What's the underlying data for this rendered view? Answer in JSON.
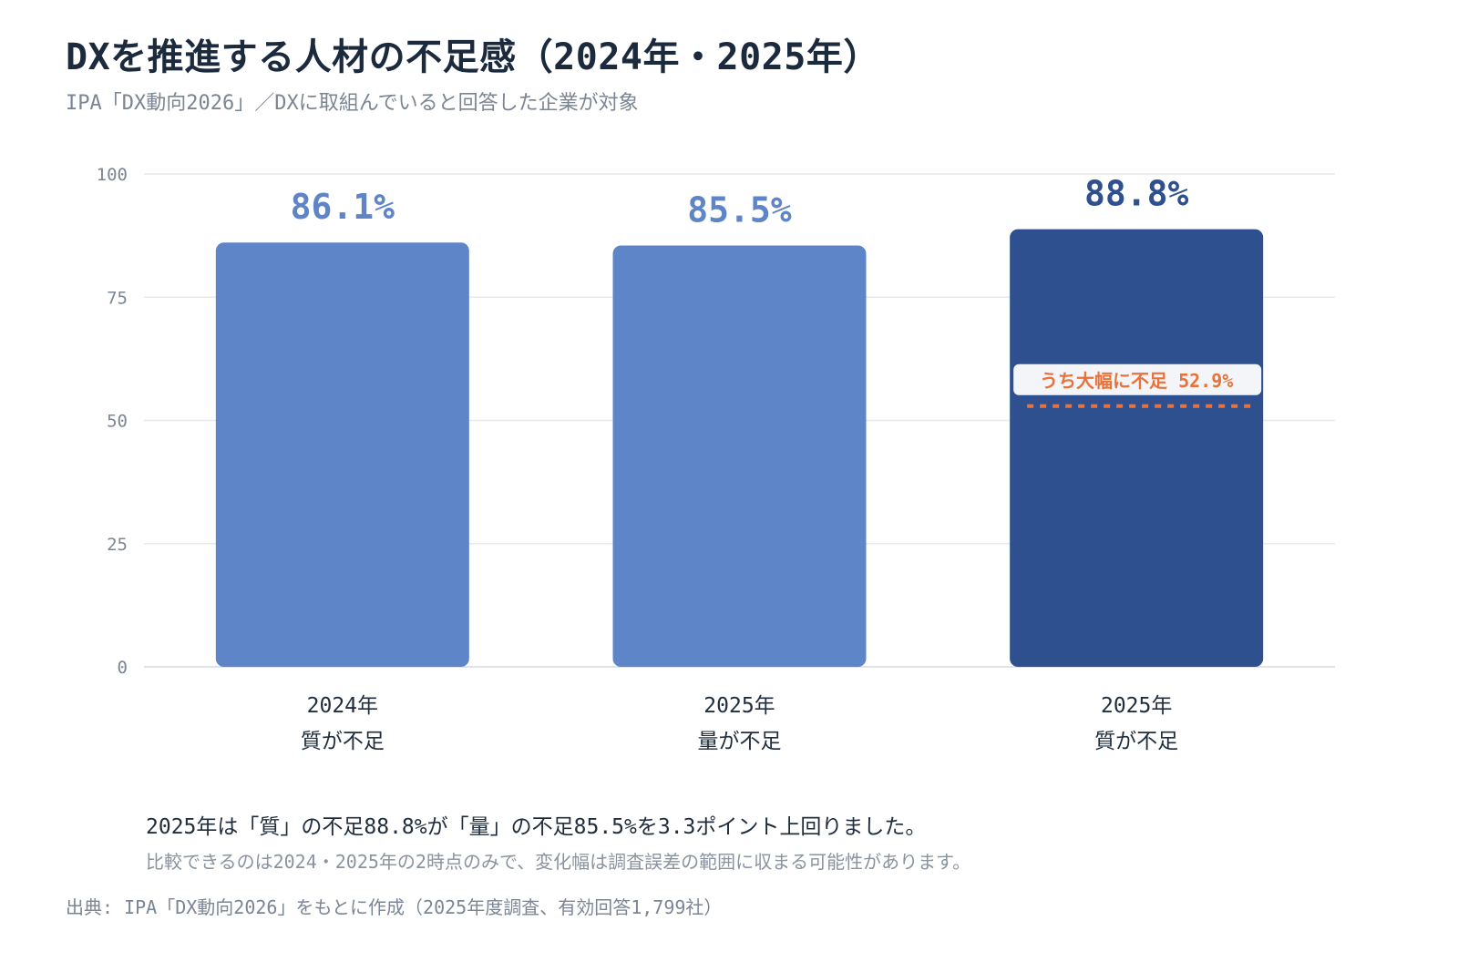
{
  "header": {
    "title": "DXを推進する人材の不足感（2024年・2025年）",
    "subtitle": "IPA「DX動向2026」／DXに取組んでいると回答した企業が対象"
  },
  "chart_data": {
    "type": "bar",
    "title": "DXを推進する人材の不足感（2024年・2025年）",
    "subtitle": "IPA「DX動向2026」／DXに取組んでいると回答した企業が対象",
    "xlabel": "",
    "ylabel": "",
    "ylim": [
      0,
      100
    ],
    "yticks": [
      0,
      25,
      50,
      75,
      100
    ],
    "grid": true,
    "categories": [
      {
        "year": "2024年",
        "label": "質が不足"
      },
      {
        "year": "2025年",
        "label": "量が不足"
      },
      {
        "year": "2025年",
        "label": "質が不足"
      }
    ],
    "values": [
      86.1,
      85.5,
      88.8
    ],
    "value_labels": [
      "86.1%",
      "85.5%",
      "88.8%"
    ],
    "colors": [
      "#5e85c8",
      "#5e85c8",
      "#2e508e"
    ],
    "value_label_colors": [
      "#5e85c8",
      "#5e85c8",
      "#2e508e"
    ],
    "annotation": {
      "bar_index": 2,
      "text": "うち大幅に不足 52.9%",
      "value": 52.9,
      "color": "#e8723a"
    }
  },
  "notes": {
    "main": "2025年は「質」の不足88.8%が「量」の不足85.5%を3.3ポイント上回りました。",
    "sub": "比較できるのは2024・2025年の2時点のみで、変化幅は調査誤差の範囲に収まる可能性があります。"
  },
  "source": "出典: IPA「DX動向2026」をもとに作成（2025年度調査、有効回答1,799社）"
}
